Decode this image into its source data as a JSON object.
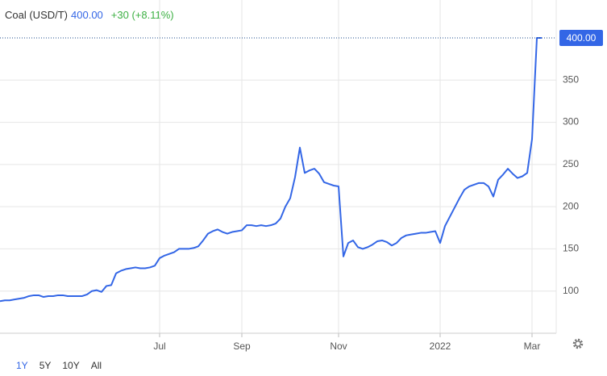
{
  "chart_data": {
    "type": "line",
    "title": "Coal (USD/T)",
    "last": {
      "value": 400,
      "label": "400.00"
    },
    "change": "+30 (+8.11%)",
    "categories": [
      null,
      null,
      null,
      null,
      null,
      null,
      null,
      null,
      null,
      null,
      null,
      null,
      null,
      null,
      null,
      null,
      null,
      null,
      null,
      null,
      null,
      null,
      null,
      null,
      null,
      null,
      null,
      null,
      null,
      null,
      null,
      null,
      null,
      "Jul",
      null,
      null,
      null,
      null,
      null,
      null,
      null,
      null,
      null,
      null,
      null,
      null,
      null,
      null,
      null,
      null,
      "Sep",
      null,
      null,
      null,
      null,
      null,
      null,
      null,
      null,
      null,
      null,
      null,
      null,
      null,
      null,
      null,
      null,
      null,
      null,
      null,
      "Nov",
      null,
      null,
      null,
      null,
      null,
      null,
      null,
      null,
      null,
      null,
      null,
      null,
      null,
      null,
      null,
      null,
      null,
      null,
      null,
      null,
      "2022",
      null,
      null,
      null,
      null,
      null,
      null,
      null,
      null,
      null,
      null,
      null,
      null,
      null,
      null,
      null,
      null,
      null,
      null,
      "Mar",
      null,
      null
    ],
    "series": [
      {
        "color": "#3366e6",
        "values": [
          88,
          89,
          89,
          90,
          91,
          92,
          94,
          95,
          95,
          93,
          94,
          94,
          95,
          95,
          94,
          94,
          94,
          94,
          96,
          100,
          101,
          99,
          106,
          107,
          121,
          124,
          126,
          127,
          128,
          127,
          127,
          128,
          130,
          139,
          142,
          144,
          146,
          150,
          150,
          150,
          151,
          153,
          160,
          168,
          171,
          173,
          170,
          168,
          170,
          171,
          172,
          178,
          178,
          177,
          178,
          177,
          178,
          180,
          186,
          200,
          210,
          235,
          270,
          240,
          243,
          245,
          239,
          229,
          227,
          225,
          224,
          141,
          157,
          160,
          152,
          150,
          152,
          155,
          159,
          160,
          158,
          154,
          157,
          163,
          166,
          167,
          168,
          169,
          169,
          170,
          171,
          157,
          177,
          188,
          199,
          210,
          220,
          224,
          226,
          228,
          228,
          224,
          212,
          232,
          238,
          245,
          239,
          234,
          236,
          240,
          280,
          400,
          400
        ]
      }
    ],
    "ylim": [
      50,
      400
    ],
    "yticks": [
      100,
      150,
      200,
      250,
      300,
      350
    ],
    "grid": true
  },
  "range_buttons": [
    "1Y",
    "5Y",
    "10Y",
    "All"
  ],
  "active_range": 0
}
